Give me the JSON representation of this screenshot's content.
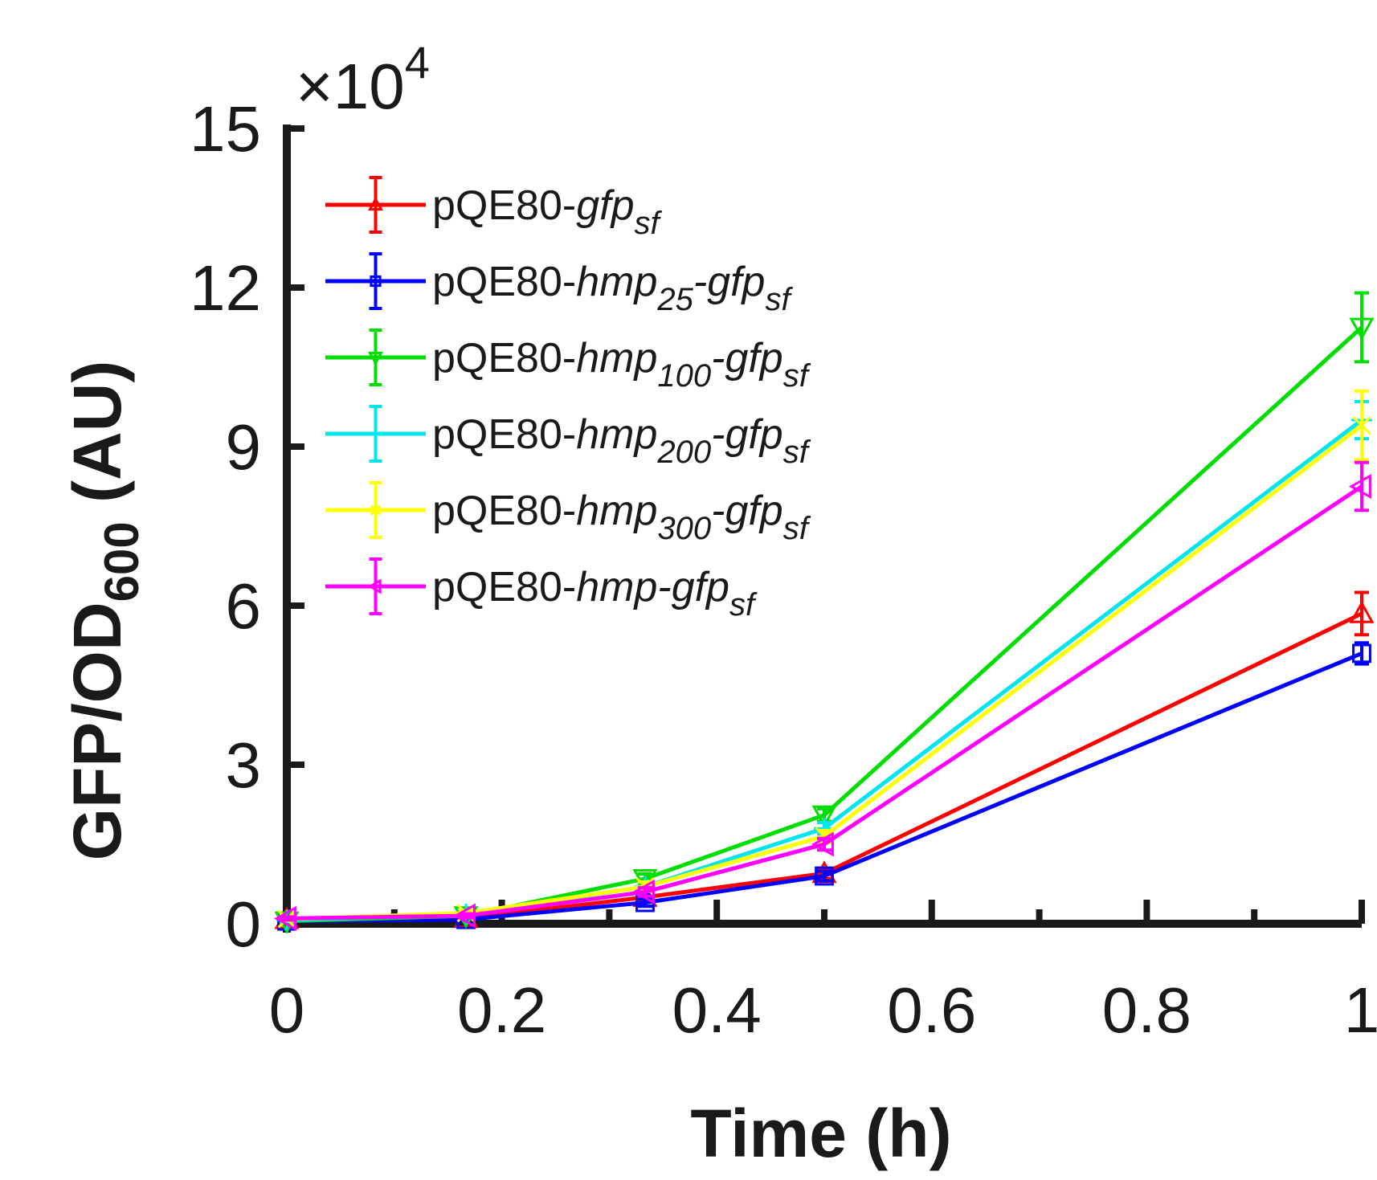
{
  "chart_data": {
    "type": "line",
    "title": "",
    "xlabel": "Time (h)",
    "ylabel": {
      "main": "GFP/OD",
      "sub": "600",
      "unit": " (AU)"
    },
    "y_exponent": {
      "prefix": "×10",
      "power": "4"
    },
    "xlim": [
      0,
      1
    ],
    "ylim": [
      0,
      150000
    ],
    "xticks": [
      0,
      0.2,
      0.4,
      0.6,
      0.8,
      1
    ],
    "xtick_labels": [
      "0",
      "0.2",
      "0.4",
      "0.6",
      "0.8",
      "1"
    ],
    "yticks": [
      0,
      30000,
      60000,
      90000,
      120000,
      150000
    ],
    "ytick_labels": [
      "0",
      "3",
      "6",
      "9",
      "12",
      "15"
    ],
    "grid": false,
    "legend_position": "top-left",
    "x": [
      0,
      0.1667,
      0.3333,
      0.5,
      1
    ],
    "series": [
      {
        "name": "pQE80-gfpsf",
        "label_parts": [
          [
            "pQE80-",
            "n"
          ],
          [
            "gfp",
            "i"
          ],
          [
            "sf",
            "s"
          ]
        ],
        "color": "#ff0000",
        "marker": "triangle-up",
        "values": [
          800,
          1000,
          5000,
          9500,
          58500
        ],
        "errors": [
          300,
          300,
          800,
          1000,
          4000
        ]
      },
      {
        "name": "pQE80-hmp25-gfpsf",
        "label_parts": [
          [
            "pQE80-",
            "n"
          ],
          [
            "hmp",
            "i"
          ],
          [
            "25",
            "s"
          ],
          [
            "-gfp",
            "i"
          ],
          [
            "sf",
            "s"
          ]
        ],
        "color": "#0000ff",
        "marker": "square",
        "values": [
          500,
          800,
          4000,
          9000,
          51000
        ],
        "errors": [
          300,
          300,
          700,
          900,
          2000
        ]
      },
      {
        "name": "pQE80-hmp100-gfpsf",
        "label_parts": [
          [
            "pQE80-",
            "n"
          ],
          [
            "hmp",
            "i"
          ],
          [
            "100",
            "s"
          ],
          [
            "-gfp",
            "i"
          ],
          [
            "sf",
            "s"
          ]
        ],
        "color": "#00dd00",
        "marker": "triangle-down",
        "values": [
          500,
          1500,
          8500,
          20500,
          112500
        ],
        "errors": [
          300,
          400,
          900,
          1200,
          6500
        ]
      },
      {
        "name": "pQE80-hmp200-gfpsf",
        "label_parts": [
          [
            "pQE80-",
            "n"
          ],
          [
            "hmp",
            "i"
          ],
          [
            "200",
            "s"
          ],
          [
            "-gfp",
            "i"
          ],
          [
            "sf",
            "s"
          ]
        ],
        "color": "#00e5ee",
        "marker": "plus",
        "values": [
          700,
          1800,
          7000,
          18000,
          95000
        ],
        "errors": [
          300,
          400,
          900,
          1100,
          3500
        ]
      },
      {
        "name": "pQE80-hmp300-gfpsf",
        "label_parts": [
          [
            "pQE80-",
            "n"
          ],
          [
            "hmp",
            "i"
          ],
          [
            "300",
            "s"
          ],
          [
            "-gfp",
            "i"
          ],
          [
            "sf",
            "s"
          ]
        ],
        "color": "#ffff00",
        "marker": "x",
        "values": [
          900,
          2000,
          7000,
          16500,
          94000
        ],
        "errors": [
          300,
          400,
          900,
          1100,
          6500
        ]
      },
      {
        "name": "pQE80-hmp-gfpsf",
        "label_parts": [
          [
            "pQE80-",
            "n"
          ],
          [
            "hmp-gfp",
            "i"
          ],
          [
            "sf",
            "s"
          ]
        ],
        "color": "#ff00ff",
        "marker": "triangle-left",
        "values": [
          1000,
          1500,
          6000,
          15000,
          82500
        ],
        "errors": [
          300,
          400,
          800,
          1100,
          4500
        ]
      }
    ]
  }
}
